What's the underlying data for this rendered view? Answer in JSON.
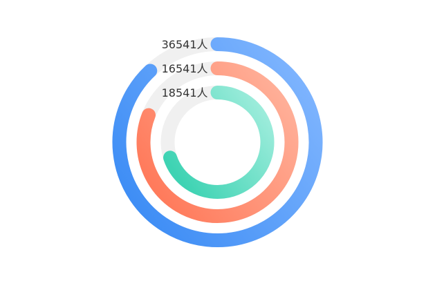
{
  "chart_data": {
    "type": "radial_bar",
    "max": 1,
    "start_angle_deg": 0,
    "direction": "clockwise",
    "series": [
      {
        "label": "36541人",
        "value": 0.88,
        "color_start": "#3f8ef5",
        "color_end": "#86b9ff",
        "track_color": "#f0f0f0"
      },
      {
        "label": "16541人",
        "value": 0.81,
        "color_start": "#ff7b5c",
        "color_end": "#ffb6a0",
        "track_color": "#f0f0f0"
      },
      {
        "label": "18541人",
        "value": 0.7,
        "color_start": "#3ed3b3",
        "color_end": "#a8efe0",
        "track_color": "#f0f0f0"
      }
    ]
  }
}
